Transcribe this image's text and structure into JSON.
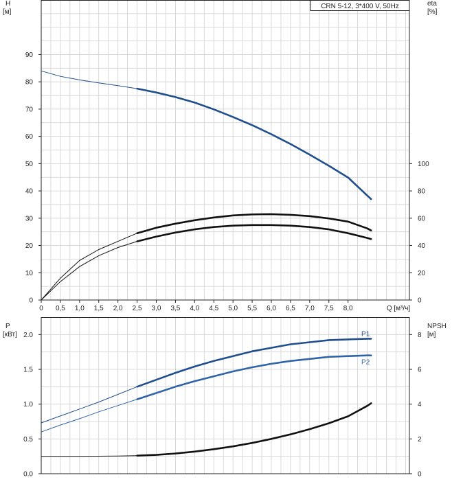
{
  "chart_data": [
    {
      "type": "line",
      "title": "CRN 5-12, 3*400 V, 50Hz",
      "x_axis": {
        "label": "Q [м³/ч]",
        "range": [
          0,
          9.6
        ],
        "tick_values": [
          0,
          0.5,
          1.0,
          1.5,
          2.0,
          2.5,
          3.0,
          3.5,
          4.0,
          4.5,
          5.0,
          5.5,
          6.0,
          6.5,
          7.0,
          7.5,
          8.0
        ],
        "tick_labels": [
          "0",
          "0,5",
          "1,0",
          "1,5",
          "2,0",
          "2,5",
          "3,0",
          "3,5",
          "4,0",
          "4,5",
          "5,0",
          "5,5",
          "6,0",
          "6,5",
          "7,0",
          "7,5",
          "8,0"
        ]
      },
      "y_left": {
        "label_top": "H",
        "label_unit": "[м]",
        "range": [
          0,
          110
        ],
        "ticks": [
          0,
          10,
          20,
          30,
          40,
          50,
          60,
          70,
          80,
          90
        ],
        "tick_labels": [
          "0",
          "10",
          "20",
          "30",
          "40",
          "50",
          "60",
          "70",
          "80",
          "90"
        ]
      },
      "y_right": {
        "label_top": "eta",
        "label_unit": "[%]",
        "range": [
          0,
          220
        ],
        "ticks": [
          0,
          20,
          40,
          60,
          80,
          100
        ],
        "tick_labels": [
          "0",
          "20",
          "40",
          "60",
          "80",
          "100"
        ]
      },
      "grid": true,
      "series": [
        {
          "axis": "left",
          "color": "#1f4e8c",
          "bold_from": 2.5,
          "x": [
            0,
            0.5,
            1.0,
            1.5,
            2.0,
            2.5,
            3.0,
            3.5,
            4.0,
            4.5,
            5.0,
            5.5,
            6.0,
            6.5,
            7.0,
            7.5,
            8.0,
            8.5,
            8.6
          ],
          "y": [
            84,
            82,
            80.7,
            79.6,
            78.6,
            77.5,
            76.1,
            74.4,
            72.4,
            69.9,
            67.1,
            64.1,
            60.8,
            57.2,
            53.3,
            49.2,
            44.9,
            38.3,
            37
          ]
        },
        {
          "axis": "right",
          "color": "#111111",
          "bold_from": 2.5,
          "x": [
            0,
            0.5,
            1.0,
            1.5,
            2.0,
            2.5,
            3.0,
            3.5,
            4.0,
            4.5,
            5.0,
            5.5,
            6.0,
            6.5,
            7.0,
            7.5,
            8.0,
            8.5,
            8.6
          ],
          "y": [
            0,
            16,
            29,
            37,
            43,
            49,
            53,
            56,
            58.5,
            60.5,
            62,
            62.8,
            63,
            62.5,
            61.5,
            59.8,
            57.5,
            52.5,
            51
          ]
        },
        {
          "axis": "right",
          "color": "#111111",
          "bold_from": 2.5,
          "x": [
            0,
            0.5,
            1.0,
            1.5,
            2.0,
            2.5,
            3.0,
            3.5,
            4.0,
            4.5,
            5.0,
            5.5,
            6.0,
            6.5,
            7.0,
            7.5,
            8.0,
            8.5,
            8.6
          ],
          "y": [
            0,
            13.5,
            24.5,
            32.5,
            38.5,
            43,
            46.5,
            49.5,
            51.8,
            53.5,
            54.5,
            55,
            55,
            54.5,
            53.5,
            51.8,
            49,
            45.5,
            44.7
          ]
        }
      ]
    },
    {
      "type": "line",
      "x_axis": {
        "range": [
          0,
          9.6
        ]
      },
      "y_left": {
        "label_top": "P",
        "label_unit": "[кВт]",
        "range": [
          0,
          2.25
        ],
        "ticks": [
          0,
          0.5,
          1.0,
          1.5,
          2.0
        ],
        "tick_labels": [
          "0.0",
          "0.5",
          "1.0",
          "1.5",
          "2.0"
        ]
      },
      "y_right": {
        "label_top": "NPSH",
        "label_unit": "[м]",
        "range": [
          0,
          9
        ],
        "ticks": [
          0,
          2,
          4,
          6,
          8
        ],
        "tick_labels": [
          "0",
          "2",
          "4",
          "6",
          "8"
        ]
      },
      "grid": true,
      "series": [
        {
          "name": "P1",
          "axis": "left",
          "color": "#1f4e8c",
          "bold_from": 2.5,
          "x": [
            0,
            0.5,
            1.0,
            1.5,
            2.0,
            2.5,
            3.0,
            3.5,
            4.0,
            4.5,
            5.0,
            5.5,
            6.0,
            6.5,
            7.0,
            7.5,
            8.0,
            8.5,
            8.6
          ],
          "y": [
            0.73,
            0.83,
            0.93,
            1.03,
            1.14,
            1.25,
            1.35,
            1.45,
            1.54,
            1.62,
            1.69,
            1.76,
            1.81,
            1.86,
            1.89,
            1.92,
            1.93,
            1.94,
            1.94
          ]
        },
        {
          "name": "P2",
          "axis": "left",
          "color": "#2f64a8",
          "bold_from": 2.5,
          "x": [
            0,
            0.5,
            1.0,
            1.5,
            2.0,
            2.5,
            3.0,
            3.5,
            4.0,
            4.5,
            5.0,
            5.5,
            6.0,
            6.5,
            7.0,
            7.5,
            8.0,
            8.5,
            8.6
          ],
          "y": [
            0.6,
            0.7,
            0.79,
            0.89,
            0.98,
            1.07,
            1.16,
            1.25,
            1.33,
            1.4,
            1.47,
            1.53,
            1.58,
            1.62,
            1.65,
            1.68,
            1.69,
            1.7,
            1.7
          ]
        },
        {
          "axis": "right",
          "color": "#111111",
          "bold_from": 2.5,
          "x": [
            0,
            1.0,
            2.0,
            2.5,
            3.0,
            3.5,
            4.0,
            4.5,
            5.0,
            5.5,
            6.0,
            6.5,
            7.0,
            7.5,
            8.0,
            8.5,
            8.6
          ],
          "y": [
            1.0,
            1.0,
            1.02,
            1.04,
            1.08,
            1.16,
            1.27,
            1.41,
            1.57,
            1.77,
            2.0,
            2.26,
            2.56,
            2.9,
            3.3,
            3.9,
            4.05
          ]
        }
      ]
    }
  ]
}
